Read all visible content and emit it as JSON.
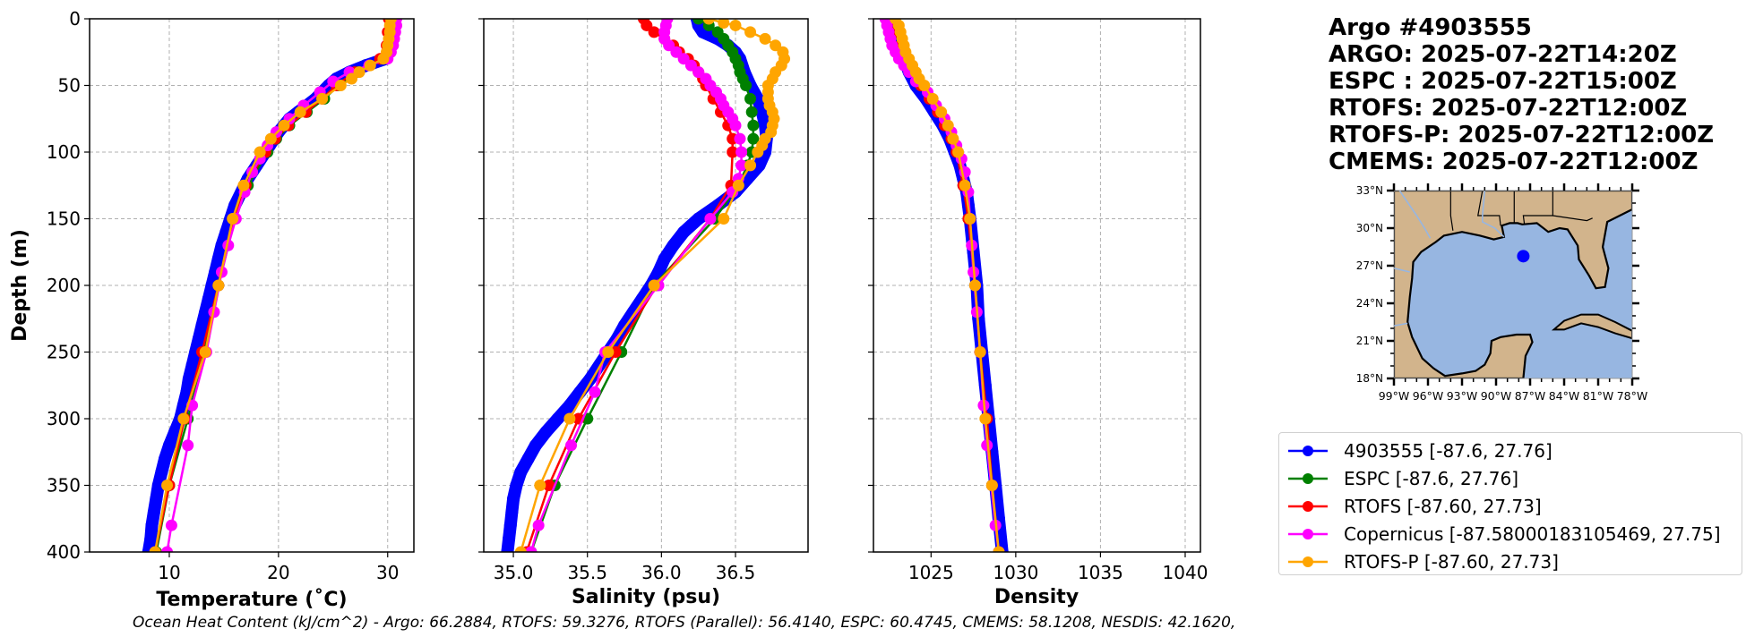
{
  "info": {
    "title": "Argo #4903555",
    "lines": [
      "ARGO: 2025-07-22T14:20Z",
      "ESPC : 2025-07-22T15:00Z",
      "RTOFS: 2025-07-22T12:00Z",
      "RTOFS-P: 2025-07-22T12:00Z",
      "CMEMS: 2025-07-22T12:00Z"
    ]
  },
  "ohc_text": "Ocean Heat Content (kJ/cm^2) - Argo: 66.2884,  RTOFS: 59.3276,  RTOFS (Parallel): 56.4140,  ESPC: 60.4745,  CMEMS: 58.1208,  NESDIS: 42.1620,",
  "legend": [
    {
      "label": "4903555 [-87.6, 27.76]",
      "color": "#0000ff"
    },
    {
      "label": "ESPC [-87.6, 27.76]",
      "color": "#008000"
    },
    {
      "label": "RTOFS [-87.60, 27.73]",
      "color": "#ff0000"
    },
    {
      "label": "Copernicus [-87.58000183105469, 27.75]",
      "color": "#ff00ff"
    },
    {
      "label": "RTOFS-P [-87.60, 27.73]",
      "color": "#ffa500"
    }
  ],
  "chart_data": [
    {
      "type": "line",
      "id": "temperature",
      "xlabel": "Temperature (˚C)",
      "ylabel": "Depth (m)",
      "xlim": [
        2.7,
        32.4
      ],
      "ylim": [
        400,
        0
      ],
      "xticks": [
        10,
        20,
        30
      ],
      "xtick_labels": [
        "10",
        "20",
        "30"
      ],
      "yticks": [
        0,
        50,
        100,
        150,
        200,
        250,
        300,
        350,
        400
      ],
      "ytick_labels": [
        "0",
        "50",
        "100",
        "150",
        "200",
        "250",
        "300",
        "350",
        "400"
      ],
      "grid": true,
      "series": [
        {
          "name": "4903555",
          "color": "#0000ff",
          "dense": true,
          "depth": [
            0,
            5,
            10,
            15,
            20,
            25,
            30,
            35,
            40,
            45,
            50,
            55,
            60,
            65,
            70,
            75,
            80,
            85,
            90,
            95,
            100,
            110,
            120,
            130,
            140,
            150,
            160,
            170,
            180,
            190,
            200,
            210,
            220,
            230,
            240,
            250,
            260,
            270,
            280,
            290,
            300,
            310,
            320,
            330,
            340,
            350,
            360,
            370,
            380,
            390,
            400
          ],
          "values": [
            30.4,
            30.4,
            30.3,
            30.3,
            30.2,
            30.1,
            29.8,
            28.0,
            26.5,
            25.3,
            24.6,
            24.0,
            23.4,
            22.6,
            21.8,
            21.0,
            20.5,
            20.0,
            19.6,
            19.2,
            18.8,
            18.0,
            17.2,
            16.6,
            16.0,
            15.6,
            15.2,
            14.8,
            14.5,
            14.2,
            13.9,
            13.6,
            13.3,
            13.0,
            12.7,
            12.4,
            12.1,
            11.8,
            11.6,
            11.3,
            11.0,
            10.5,
            10.0,
            9.6,
            9.3,
            9.0,
            8.8,
            8.6,
            8.4,
            8.3,
            8.1
          ]
        },
        {
          "name": "ESPC",
          "color": "#008000",
          "depth": [
            0,
            10,
            20,
            30,
            40,
            50,
            60,
            70,
            80,
            90,
            100,
            125,
            150,
            200,
            250,
            300,
            350,
            400
          ],
          "values": [
            30.3,
            30.2,
            30.0,
            29.5,
            27.2,
            25.5,
            24.2,
            22.6,
            21.0,
            19.8,
            19.0,
            17.2,
            16.0,
            14.5,
            13.2,
            11.7,
            10.0,
            8.8
          ]
        },
        {
          "name": "RTOFS",
          "color": "#ff0000",
          "depth": [
            0,
            10,
            20,
            30,
            40,
            50,
            60,
            70,
            80,
            90,
            100,
            125,
            150,
            200,
            250,
            300,
            350,
            400
          ],
          "values": [
            30.1,
            30.0,
            29.9,
            29.3,
            27.0,
            25.3,
            24.0,
            22.5,
            20.9,
            19.7,
            18.8,
            17.0,
            16.0,
            14.5,
            13.0,
            11.4,
            10.0,
            8.7
          ]
        },
        {
          "name": "Copernicus",
          "color": "#ff00ff",
          "depth": [
            0,
            5,
            10,
            15,
            20,
            25,
            30,
            35,
            40,
            47,
            55,
            65,
            75,
            85,
            95,
            105,
            115,
            130,
            150,
            170,
            190,
            220,
            250,
            290,
            320,
            380,
            400
          ],
          "values": [
            30.8,
            30.8,
            30.7,
            30.6,
            30.5,
            30.3,
            30.0,
            28.3,
            26.5,
            25.0,
            23.8,
            22.3,
            21.0,
            19.8,
            19.0,
            18.3,
            17.6,
            16.9,
            16.1,
            15.4,
            14.8,
            14.1,
            13.4,
            12.1,
            11.7,
            10.2,
            9.8
          ]
        },
        {
          "name": "RTOFS-P",
          "color": "#ffa500",
          "depth": [
            0,
            5,
            10,
            15,
            20,
            25,
            30,
            35,
            40,
            45,
            50,
            60,
            70,
            80,
            90,
            100,
            125,
            150,
            200,
            250,
            300,
            350,
            400
          ],
          "values": [
            30.3,
            30.2,
            30.2,
            30.1,
            30.0,
            29.9,
            29.6,
            28.4,
            27.4,
            26.7,
            25.7,
            24.0,
            22.0,
            20.5,
            19.3,
            18.3,
            16.8,
            15.8,
            14.5,
            13.3,
            11.3,
            9.8,
            8.7
          ]
        }
      ]
    },
    {
      "type": "line",
      "id": "salinity",
      "xlabel": "Salinity (psu)",
      "ylabel": "",
      "xlim": [
        34.8,
        36.99
      ],
      "ylim": [
        400,
        0
      ],
      "xticks": [
        35.0,
        35.5,
        36.0,
        36.5
      ],
      "xtick_labels": [
        "35.0",
        "35.5",
        "36.0",
        "36.5"
      ],
      "yticks": [
        0,
        50,
        100,
        150,
        200,
        250,
        300,
        350,
        400
      ],
      "grid": true,
      "series": [
        {
          "name": "4903555",
          "color": "#0000ff",
          "dense": true,
          "depth": [
            0,
            5,
            10,
            15,
            20,
            25,
            30,
            40,
            50,
            60,
            70,
            80,
            90,
            100,
            110,
            120,
            130,
            140,
            150,
            160,
            170,
            180,
            190,
            200,
            210,
            220,
            230,
            240,
            250,
            260,
            270,
            280,
            290,
            300,
            310,
            320,
            330,
            340,
            350,
            360,
            370,
            380,
            390,
            400
          ],
          "values": [
            36.24,
            36.25,
            36.28,
            36.38,
            36.45,
            36.5,
            36.53,
            36.56,
            36.6,
            36.65,
            36.68,
            36.7,
            36.71,
            36.7,
            36.66,
            36.58,
            36.5,
            36.38,
            36.25,
            36.15,
            36.08,
            36.02,
            35.98,
            35.93,
            35.87,
            35.81,
            35.75,
            35.7,
            35.64,
            35.58,
            35.52,
            35.45,
            35.38,
            35.3,
            35.22,
            35.15,
            35.1,
            35.05,
            35.02,
            35.0,
            34.99,
            34.98,
            34.97,
            34.96
          ]
        },
        {
          "name": "ESPC",
          "color": "#008000",
          "depth": [
            0,
            5,
            10,
            15,
            20,
            25,
            30,
            35,
            40,
            45,
            50,
            60,
            70,
            80,
            90,
            100,
            110,
            125,
            150,
            200,
            250,
            300,
            350,
            400
          ],
          "values": [
            36.25,
            36.32,
            36.38,
            36.42,
            36.45,
            36.48,
            36.5,
            36.52,
            36.53,
            36.55,
            36.57,
            36.6,
            36.61,
            36.62,
            36.62,
            36.61,
            36.58,
            36.52,
            36.36,
            35.95,
            35.73,
            35.5,
            35.28,
            35.12
          ]
        },
        {
          "name": "RTOFS",
          "color": "#ff0000",
          "depth": [
            0,
            5,
            10,
            15,
            20,
            25,
            30,
            35,
            40,
            45,
            50,
            60,
            70,
            80,
            90,
            100,
            125,
            150,
            200,
            250,
            300,
            350,
            400
          ],
          "values": [
            35.88,
            35.9,
            35.95,
            36.02,
            36.08,
            36.12,
            36.18,
            36.22,
            36.25,
            36.28,
            36.3,
            36.35,
            36.4,
            36.45,
            36.48,
            36.48,
            36.47,
            36.33,
            35.97,
            35.69,
            35.44,
            35.24,
            35.09
          ]
        },
        {
          "name": "Copernicus",
          "color": "#ff00ff",
          "depth": [
            0,
            5,
            10,
            15,
            20,
            25,
            30,
            35,
            40,
            45,
            50,
            55,
            60,
            65,
            70,
            75,
            80,
            90,
            100,
            110,
            120,
            130,
            150,
            200,
            250,
            280,
            320,
            380,
            400
          ],
          "values": [
            36.04,
            36.03,
            36.02,
            36.02,
            36.05,
            36.1,
            36.15,
            36.2,
            36.25,
            36.3,
            36.33,
            36.37,
            36.4,
            36.42,
            36.45,
            36.48,
            36.5,
            36.53,
            36.54,
            36.54,
            36.52,
            36.48,
            36.33,
            35.98,
            35.62,
            35.55,
            35.39,
            35.17,
            35.12
          ]
        },
        {
          "name": "RTOFS-P",
          "color": "#ffa500",
          "depth": [
            0,
            3,
            5,
            10,
            15,
            20,
            25,
            30,
            35,
            40,
            45,
            50,
            55,
            60,
            65,
            70,
            75,
            80,
            85,
            90,
            95,
            100,
            110,
            125,
            150,
            200,
            250,
            300,
            350,
            400
          ],
          "values": [
            36.32,
            36.42,
            36.5,
            36.6,
            36.7,
            36.77,
            36.82,
            36.83,
            36.81,
            36.77,
            36.75,
            36.72,
            36.72,
            36.72,
            36.73,
            36.75,
            36.76,
            36.75,
            36.74,
            36.7,
            36.68,
            36.65,
            36.6,
            36.52,
            36.42,
            35.95,
            35.64,
            35.38,
            35.18,
            35.05
          ]
        }
      ]
    },
    {
      "type": "line",
      "id": "density",
      "xlabel": "Density",
      "ylabel": "",
      "xlim": [
        1021.6,
        1040.9
      ],
      "ylim": [
        400,
        0
      ],
      "xticks": [
        1025,
        1030,
        1035,
        1040
      ],
      "xtick_labels": [
        "1025",
        "1030",
        "1035",
        "1040"
      ],
      "yticks": [
        0,
        50,
        100,
        150,
        200,
        250,
        300,
        350,
        400
      ],
      "grid": true,
      "series": [
        {
          "name": "4903555",
          "color": "#0000ff",
          "dense": true,
          "depth": [
            0,
            10,
            20,
            30,
            40,
            50,
            60,
            70,
            80,
            90,
            100,
            110,
            120,
            130,
            140,
            150,
            175,
            200,
            225,
            250,
            275,
            300,
            325,
            350,
            375,
            400
          ],
          "values": [
            1022.6,
            1022.8,
            1023.1,
            1023.4,
            1023.7,
            1024.1,
            1024.7,
            1025.2,
            1025.7,
            1026.1,
            1026.4,
            1026.7,
            1026.9,
            1027.1,
            1027.2,
            1027.3,
            1027.5,
            1027.7,
            1027.8,
            1028.0,
            1028.2,
            1028.4,
            1028.6,
            1028.8,
            1029.0,
            1029.2
          ]
        },
        {
          "name": "ESPC",
          "color": "#008000",
          "depth": [
            0,
            10,
            20,
            30,
            40,
            50,
            60,
            70,
            80,
            90,
            100,
            125,
            150,
            200,
            250,
            300,
            350,
            400
          ],
          "values": [
            1022.8,
            1023.0,
            1023.3,
            1023.6,
            1024.0,
            1024.4,
            1024.9,
            1025.4,
            1025.8,
            1026.2,
            1026.5,
            1026.9,
            1027.2,
            1027.6,
            1027.9,
            1028.3,
            1028.6,
            1029.0
          ]
        },
        {
          "name": "RTOFS",
          "color": "#ff0000",
          "depth": [
            0,
            10,
            20,
            30,
            40,
            50,
            60,
            70,
            80,
            90,
            100,
            125,
            150,
            200,
            250,
            300,
            350,
            400
          ],
          "values": [
            1022.7,
            1022.9,
            1023.2,
            1023.6,
            1024.0,
            1024.4,
            1024.9,
            1025.4,
            1025.8,
            1026.2,
            1026.5,
            1026.9,
            1027.2,
            1027.6,
            1027.9,
            1028.3,
            1028.6,
            1029.0
          ]
        },
        {
          "name": "Copernicus",
          "color": "#ff00ff",
          "depth": [
            0,
            5,
            10,
            15,
            20,
            25,
            30,
            35,
            40,
            47,
            55,
            65,
            75,
            85,
            95,
            105,
            115,
            130,
            150,
            170,
            190,
            220,
            250,
            290,
            320,
            380,
            400
          ],
          "values": [
            1022.3,
            1022.4,
            1022.5,
            1022.6,
            1022.7,
            1022.9,
            1023.1,
            1023.4,
            1023.7,
            1024.1,
            1024.8,
            1025.3,
            1025.8,
            1026.2,
            1026.5,
            1026.8,
            1027.0,
            1027.2,
            1027.3,
            1027.4,
            1027.5,
            1027.7,
            1027.9,
            1028.1,
            1028.3,
            1028.8,
            1029.0
          ]
        },
        {
          "name": "RTOFS-P",
          "color": "#ffa500",
          "depth": [
            0,
            5,
            10,
            15,
            20,
            25,
            30,
            35,
            40,
            45,
            50,
            60,
            70,
            80,
            90,
            100,
            125,
            150,
            200,
            250,
            300,
            350,
            400
          ],
          "values": [
            1022.9,
            1023.1,
            1023.2,
            1023.3,
            1023.4,
            1023.5,
            1023.7,
            1023.9,
            1024.1,
            1024.3,
            1024.6,
            1025.1,
            1025.6,
            1026.0,
            1026.3,
            1026.6,
            1027.0,
            1027.3,
            1027.6,
            1027.9,
            1028.2,
            1028.6,
            1029.0
          ]
        }
      ]
    },
    {
      "type": "map",
      "id": "location-map",
      "lon_range": [
        -99,
        -78
      ],
      "lat_range": [
        18,
        33
      ],
      "xtick_labels": [
        "99°W",
        "96°W",
        "93°W",
        "90°W",
        "87°W",
        "84°W",
        "81°W",
        "78°W"
      ],
      "ytick_labels": [
        "18°N",
        "21°N",
        "24°N",
        "27°N",
        "30°N",
        "33°N"
      ],
      "xticks": [
        -99,
        -96,
        -93,
        -90,
        -87,
        -84,
        -81,
        -78
      ],
      "yticks": [
        18,
        21,
        24,
        27,
        30,
        33
      ],
      "marker": {
        "lon": -87.6,
        "lat": 27.76,
        "color": "#0000ff"
      },
      "land_color": "#d2b48c",
      "ocean_color": "#97b6e1"
    }
  ]
}
